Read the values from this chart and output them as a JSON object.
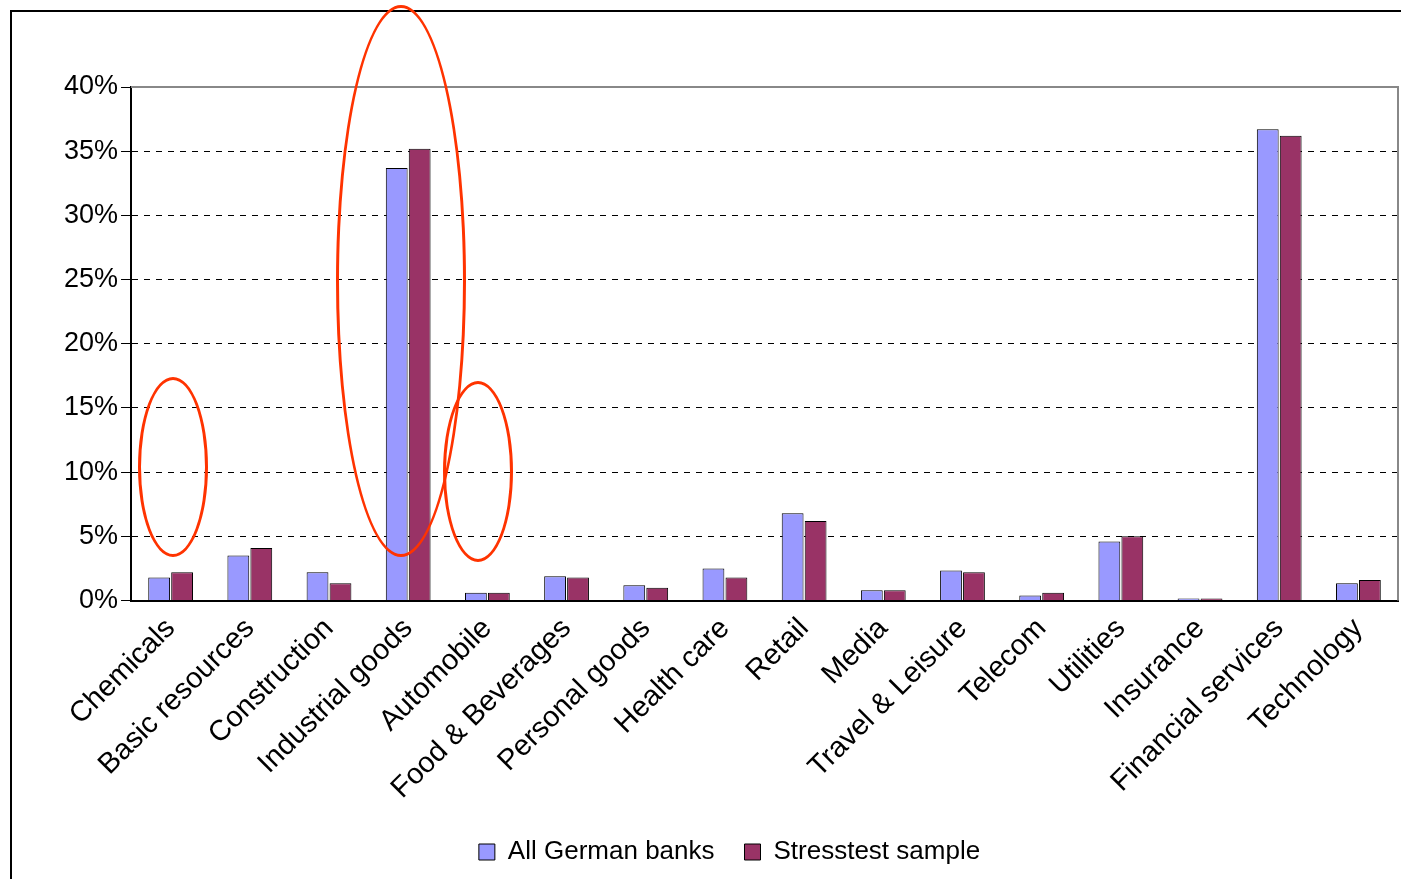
{
  "chart_data": {
    "type": "bar",
    "categories": [
      "Chemicals",
      "Basic resources",
      "Construction",
      "Industrial goods",
      "Automobile",
      "Food & Beverages",
      "Personal goods",
      "Health care",
      "Retail",
      "Media",
      "Travel & Leisure",
      "Telecom",
      "Utilities",
      "Insurance",
      "Financial services",
      "Technology"
    ],
    "series": [
      {
        "name": "All German banks",
        "color": "#9999ff",
        "values": [
          1.8,
          3.5,
          2.2,
          33.7,
          0.6,
          1.9,
          1.2,
          2.5,
          6.8,
          0.8,
          2.35,
          0.4,
          4.6,
          0.15,
          36.7,
          1.35
        ]
      },
      {
        "name": "Stresstest sample",
        "color": "#993366",
        "values": [
          2.2,
          4.1,
          1.35,
          35.2,
          0.6,
          1.8,
          1.0,
          1.8,
          6.2,
          0.8,
          2.2,
          0.6,
          5.0,
          0.15,
          36.2,
          1.6
        ]
      }
    ],
    "ylim": [
      0,
      40
    ],
    "yticks": [
      {
        "value": 0,
        "label": "0%"
      },
      {
        "value": 5,
        "label": "5%"
      },
      {
        "value": 10,
        "label": "10%"
      },
      {
        "value": 15,
        "label": "15%"
      },
      {
        "value": 20,
        "label": "20%"
      },
      {
        "value": 25,
        "label": "25%"
      },
      {
        "value": 30,
        "label": "30%"
      },
      {
        "value": 35,
        "label": "35%"
      },
      {
        "value": 40,
        "label": "40%"
      }
    ],
    "grid": "y",
    "legend": "bottom"
  }
}
